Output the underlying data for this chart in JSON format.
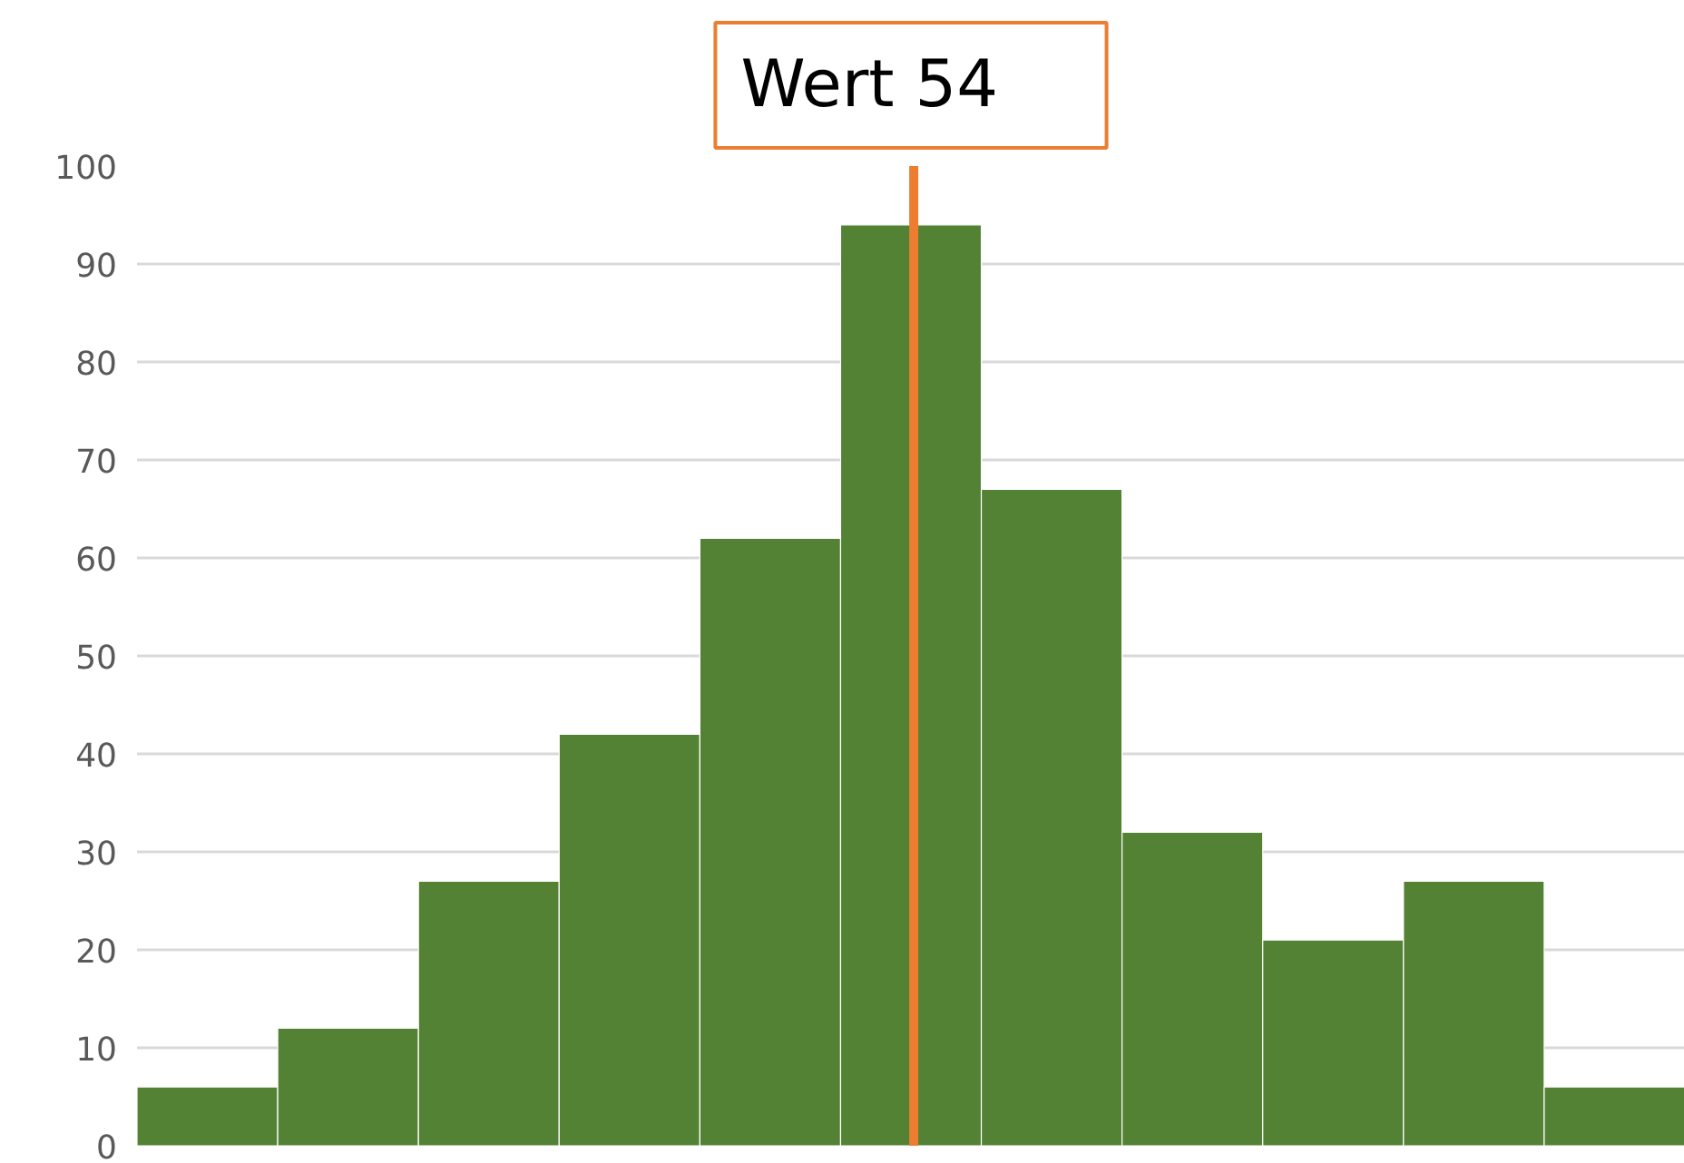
{
  "chart_data": {
    "type": "bar",
    "categories": [
      null,
      null,
      null,
      null,
      null,
      null,
      null,
      null,
      null,
      null,
      null
    ],
    "values": [
      6,
      12,
      27,
      42,
      62,
      94,
      67,
      32,
      21,
      27,
      6
    ],
    "color": "#548235",
    "ylim": [
      0,
      100
    ],
    "yticks": [
      0,
      10,
      20,
      30,
      40,
      50,
      60,
      70,
      80,
      90,
      100
    ],
    "grid": "y",
    "tick_labels": "y",
    "annotations": [
      "Wert 54"
    ]
  }
}
